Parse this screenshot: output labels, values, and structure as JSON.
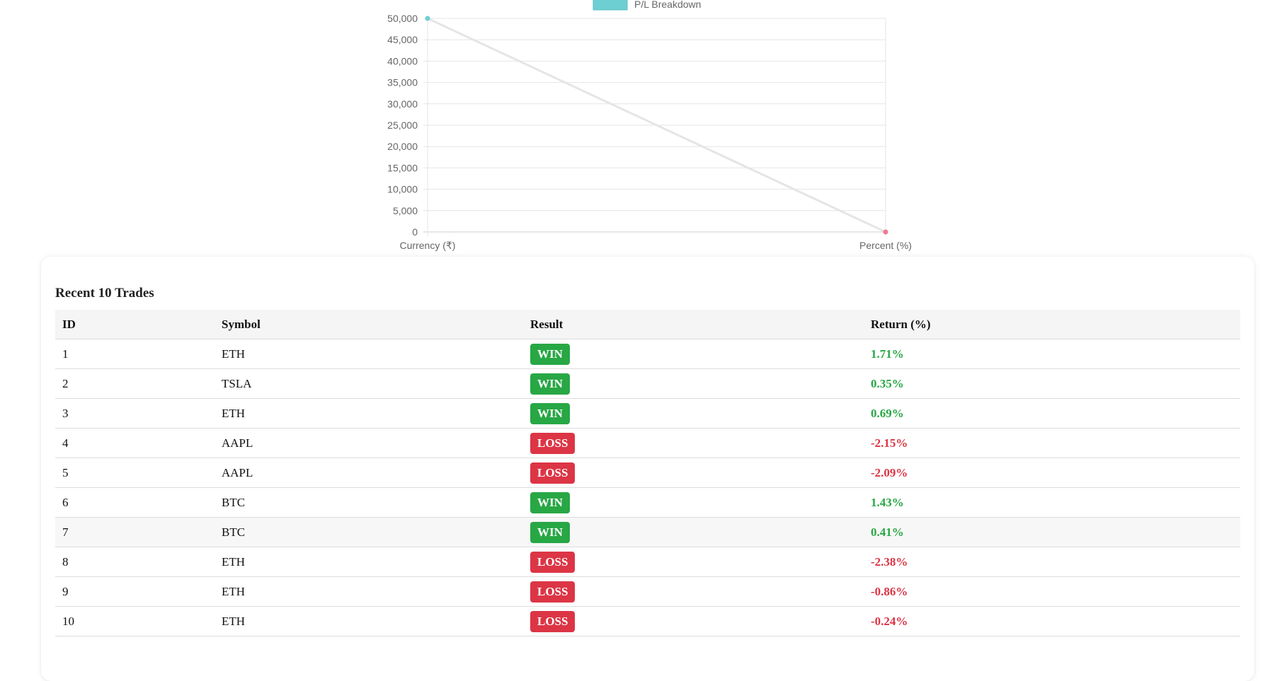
{
  "chart_data": {
    "type": "line",
    "legend": {
      "label": "P/L Breakdown",
      "color": "#6ecfd3",
      "position": "top"
    },
    "categories": [
      "Currency (₹)",
      "Percent (%)"
    ],
    "series": [
      {
        "name": "P/L Breakdown",
        "values": [
          50000,
          0
        ],
        "line_color": "#e5e5e5",
        "point_colors": [
          "#6ecfd3",
          "#f07a90"
        ]
      }
    ],
    "ylim": [
      0,
      50000
    ],
    "yticks": [
      "0",
      "5,000",
      "10,000",
      "15,000",
      "20,000",
      "25,000",
      "30,000",
      "35,000",
      "40,000",
      "45,000",
      "50,000"
    ],
    "grid": true
  },
  "trades": {
    "title": "Recent 10 Trades",
    "columns": [
      "ID",
      "Symbol",
      "Result",
      "Return (%)"
    ],
    "rows": [
      {
        "id": "1",
        "symbol": "ETH",
        "result": "WIN",
        "ret": "1.71%"
      },
      {
        "id": "2",
        "symbol": "TSLA",
        "result": "WIN",
        "ret": "0.35%"
      },
      {
        "id": "3",
        "symbol": "ETH",
        "result": "WIN",
        "ret": "0.69%"
      },
      {
        "id": "4",
        "symbol": "AAPL",
        "result": "LOSS",
        "ret": "-2.15%"
      },
      {
        "id": "5",
        "symbol": "AAPL",
        "result": "LOSS",
        "ret": "-2.09%"
      },
      {
        "id": "6",
        "symbol": "BTC",
        "result": "WIN",
        "ret": "1.43%"
      },
      {
        "id": "7",
        "symbol": "BTC",
        "result": "WIN",
        "ret": "0.41%"
      },
      {
        "id": "8",
        "symbol": "ETH",
        "result": "LOSS",
        "ret": "-2.38%"
      },
      {
        "id": "9",
        "symbol": "ETH",
        "result": "LOSS",
        "ret": "-0.86%"
      },
      {
        "id": "10",
        "symbol": "ETH",
        "result": "LOSS",
        "ret": "-0.24%"
      }
    ],
    "colors": {
      "win": "#28a745",
      "loss": "#dc3545"
    }
  }
}
